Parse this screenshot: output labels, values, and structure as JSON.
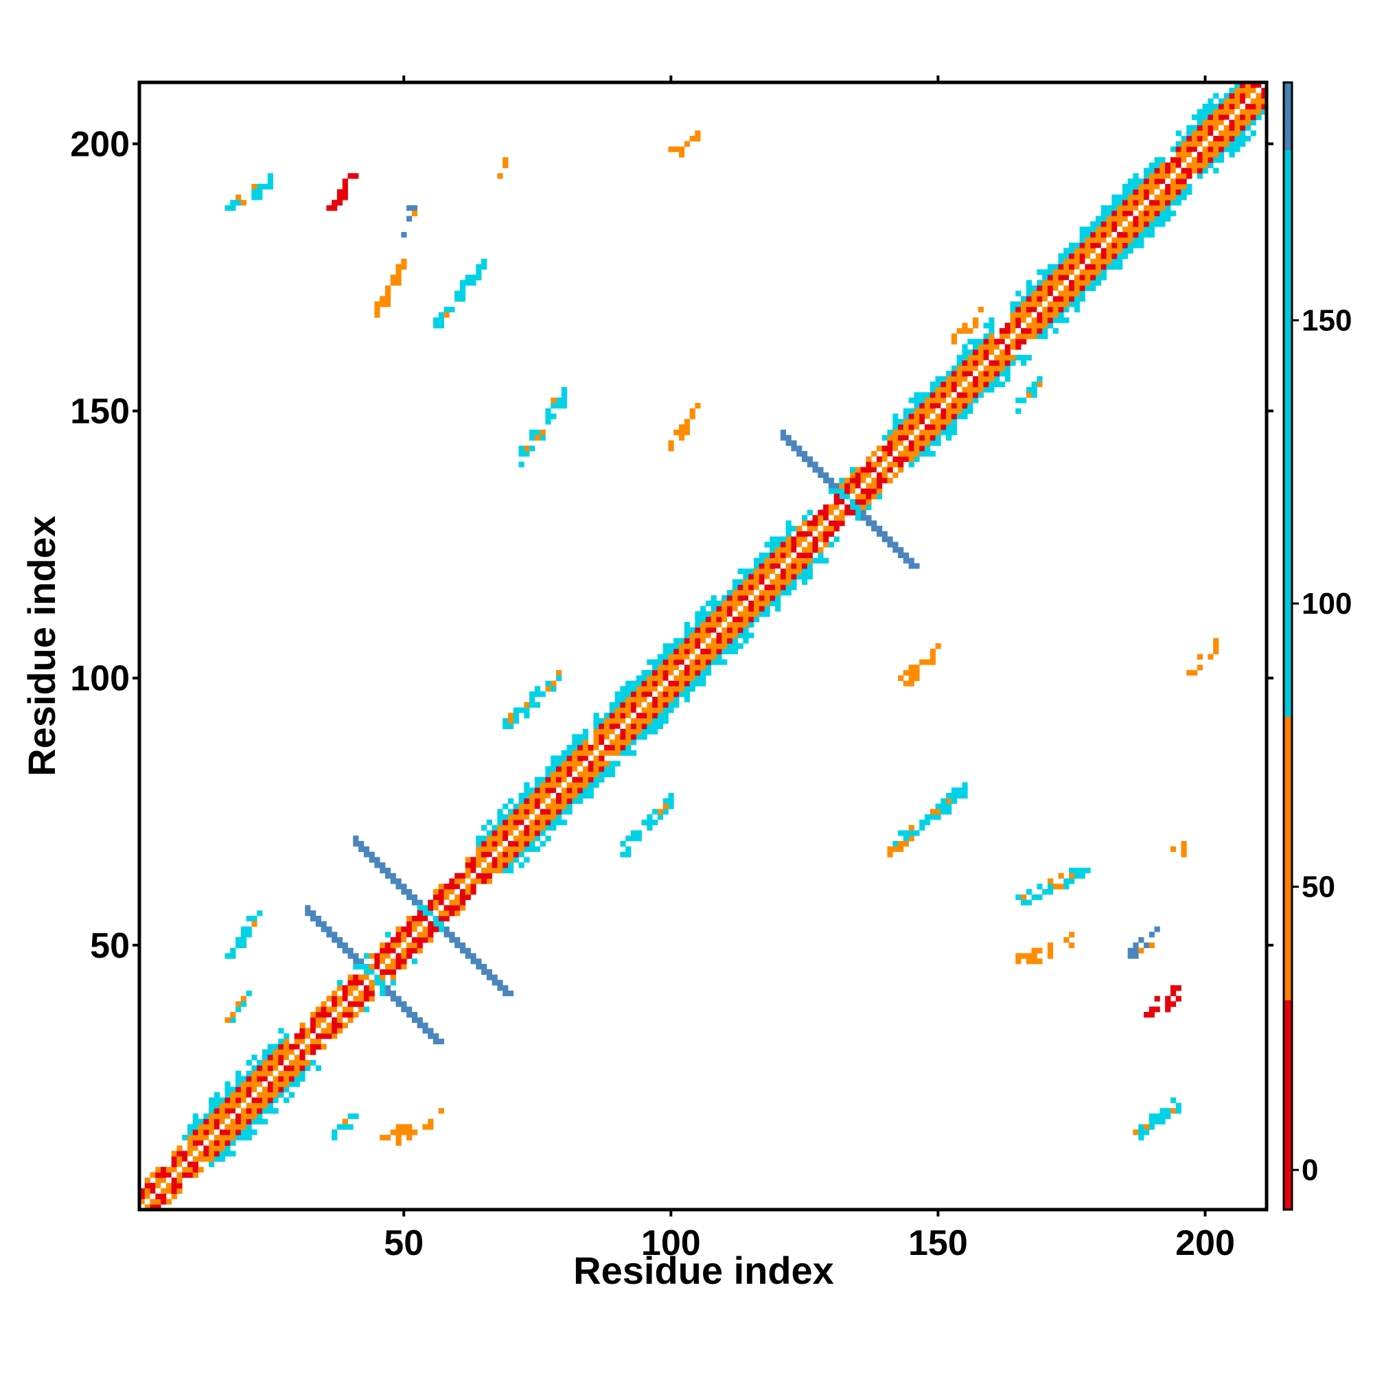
{
  "chart_data": {
    "type": "heatmap",
    "title": "",
    "xlabel": "Residue index",
    "ylabel": "Residue index",
    "xlim": [
      1,
      211
    ],
    "ylim": [
      1,
      211
    ],
    "xticks": [
      50,
      100,
      150,
      200
    ],
    "yticks": [
      50,
      100,
      150,
      200
    ],
    "colorbar": {
      "ticks": [
        0,
        50,
        100,
        150
      ],
      "range": [
        -7,
        192
      ],
      "bands": [
        {
          "from": -7,
          "to": 30,
          "color": "#e8000b"
        },
        {
          "from": 30,
          "to": 80,
          "color": "#ff7f00"
        },
        {
          "from": 80,
          "to": 180,
          "color": "#00c8dc"
        },
        {
          "from": 180,
          "to": 192,
          "color": "#4682b4"
        }
      ]
    },
    "colors": {
      "red": "#e8000b",
      "orange": "#ff8c00",
      "cyan": "#00d2e6",
      "steel": "#4a86be"
    },
    "features": [
      {
        "kind": "diagonal",
        "from": 1,
        "to": 211,
        "note": "self-contact band"
      },
      {
        "kind": "helix",
        "from": 10,
        "to": 28
      },
      {
        "kind": "helix",
        "from": 64,
        "to": 84
      },
      {
        "kind": "helix",
        "from": 86,
        "to": 104
      },
      {
        "kind": "helix",
        "from": 105,
        "to": 122
      },
      {
        "kind": "helix",
        "from": 142,
        "to": 160
      },
      {
        "kind": "helix",
        "from": 164,
        "to": 192
      },
      {
        "kind": "helix",
        "from": 195,
        "to": 211
      },
      {
        "kind": "antiparallel",
        "center": [
          44,
          44
        ],
        "span": 12,
        "color": "steel"
      },
      {
        "kind": "antiparallel",
        "center": [
          55,
          55
        ],
        "span": 14,
        "color": "steel"
      },
      {
        "kind": "antiparallel",
        "center": [
          133,
          133
        ],
        "span": 12,
        "color": "steel"
      },
      {
        "kind": "cluster",
        "x": [
          36,
          41
        ],
        "y": [
          187,
          195
        ],
        "color": "red"
      },
      {
        "kind": "cluster",
        "x": [
          188,
          195
        ],
        "y": [
          36,
          41
        ],
        "color": "red"
      },
      {
        "kind": "cluster",
        "x": [
          44,
          50
        ],
        "y": [
          167,
          177
        ],
        "color": "orange"
      },
      {
        "kind": "cluster",
        "x": [
          56,
          65
        ],
        "y": [
          166,
          178
        ],
        "color": "cyan"
      },
      {
        "kind": "cluster",
        "x": [
          72,
          80
        ],
        "y": [
          141,
          153
        ],
        "color": "cyan"
      },
      {
        "kind": "cluster",
        "x": [
          100,
          105
        ],
        "y": [
          143,
          151
        ],
        "color": "orange"
      },
      {
        "kind": "cluster",
        "x": [
          100,
          106
        ],
        "y": [
          198,
          202
        ],
        "color": "orange"
      },
      {
        "kind": "cluster",
        "x": [
          69,
          79
        ],
        "y": [
          91,
          100
        ],
        "color": "cyan"
      },
      {
        "kind": "cluster",
        "x": [
          91,
          101
        ],
        "y": [
          68,
          78
        ],
        "color": "cyan"
      },
      {
        "kind": "cluster",
        "x": [
          140,
          155
        ],
        "y": [
          67,
          79
        ],
        "color": "cyan"
      },
      {
        "kind": "cluster",
        "x": [
          143,
          150
        ],
        "y": [
          99,
          105
        ],
        "color": "orange"
      },
      {
        "kind": "cluster",
        "x": [
          165,
          178
        ],
        "y": [
          58,
          64
        ],
        "color": "cyan"
      },
      {
        "kind": "cluster",
        "x": [
          165,
          176
        ],
        "y": [
          47,
          51
        ],
        "color": "orange"
      },
      {
        "kind": "cluster",
        "x": [
          17,
          23
        ],
        "y": [
          48,
          56
        ],
        "color": "cyan"
      },
      {
        "kind": "cluster",
        "x": [
          17,
          21
        ],
        "y": [
          36,
          40
        ],
        "color": "cyan"
      },
      {
        "kind": "cluster",
        "x": [
          36,
          41
        ],
        "y": [
          14,
          18
        ],
        "color": "cyan"
      },
      {
        "kind": "cluster",
        "x": [
          46,
          57
        ],
        "y": [
          13,
          18
        ],
        "color": "orange"
      },
      {
        "kind": "cluster",
        "x": [
          187,
          195
        ],
        "y": [
          14,
          21
        ],
        "color": "cyan"
      },
      {
        "kind": "cluster",
        "x": [
          152,
          158
        ],
        "y": [
          163,
          168
        ],
        "color": "orange"
      },
      {
        "kind": "cluster",
        "x": [
          165,
          170
        ],
        "y": [
          151,
          157
        ],
        "color": "cyan"
      },
      {
        "kind": "cluster",
        "x": [
          17,
          25
        ],
        "y": [
          188,
          193
        ],
        "color": "cyan"
      },
      {
        "kind": "cluster",
        "x": [
          197,
          202
        ],
        "y": [
          100,
          106
        ],
        "color": "orange"
      },
      {
        "kind": "cluster",
        "x": [
          50,
          52
        ],
        "y": [
          184,
          188
        ],
        "color": "steel"
      },
      {
        "kind": "cluster",
        "x": [
          68,
          69
        ],
        "y": [
          194,
          196
        ],
        "color": "orange"
      },
      {
        "kind": "cluster",
        "x": [
          194,
          197
        ],
        "y": [
          67,
          69
        ],
        "color": "orange"
      },
      {
        "kind": "cluster",
        "x": [
          186,
          192
        ],
        "y": [
          48,
          53
        ],
        "color": "steel"
      }
    ]
  }
}
